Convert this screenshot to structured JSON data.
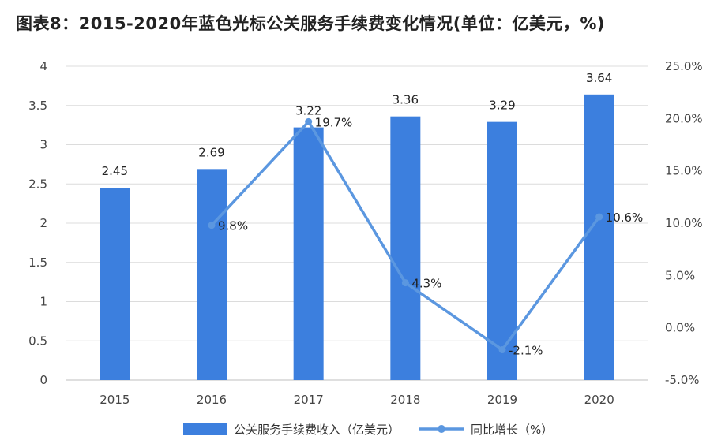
{
  "chart_data": {
    "type": "bar",
    "title": "图表8：2015-2020年蓝色光标公关服务手续费变化情况(单位：亿美元，%)",
    "categories": [
      "2015",
      "2016",
      "2017",
      "2018",
      "2019",
      "2020"
    ],
    "series": [
      {
        "name": "公关服务手续费收入（亿美元）",
        "type": "bar",
        "axis": "left",
        "values": [
          2.45,
          2.69,
          3.22,
          3.36,
          3.29,
          3.64
        ],
        "labels": [
          "2.45",
          "2.69",
          "3.22",
          "3.36",
          "3.29",
          "3.64"
        ],
        "color": "#3c7fde"
      },
      {
        "name": "同比增长（%）",
        "type": "line",
        "axis": "right",
        "x": [
          "2016",
          "2017",
          "2018",
          "2019",
          "2020"
        ],
        "values": [
          9.8,
          19.7,
          4.3,
          -2.1,
          10.6
        ],
        "labels": [
          "9.8%",
          "19.7%",
          "4.3%",
          "-2.1%",
          "10.6%"
        ],
        "color": "#5b97e0"
      }
    ],
    "y_left": {
      "ylim": [
        0,
        4
      ],
      "ticks": [
        "0",
        "0.5",
        "1",
        "1.5",
        "2",
        "2.5",
        "3",
        "3.5",
        "4"
      ]
    },
    "y_right": {
      "ylim": [
        -5,
        25
      ],
      "ticks": [
        "-5.0%",
        "0.0%",
        "5.0%",
        "10.0%",
        "15.0%",
        "20.0%",
        "25.0%"
      ]
    },
    "grid": true,
    "legend_position": "bottom"
  }
}
